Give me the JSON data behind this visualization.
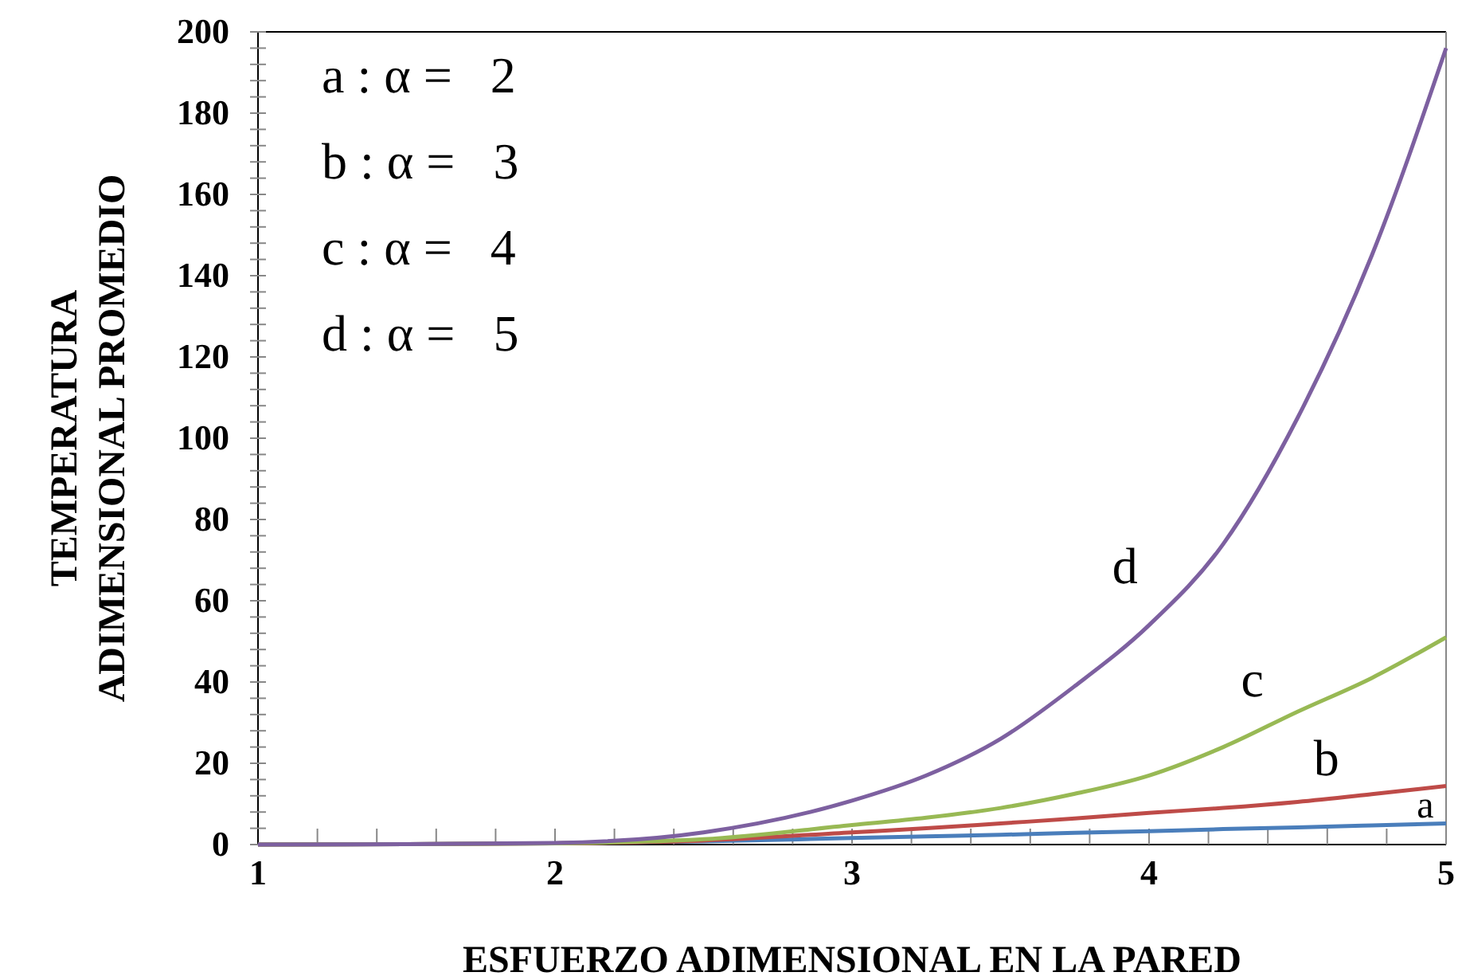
{
  "chart_data": {
    "type": "line",
    "xlabel": "ESFUERZO ADIMENSIONAL EN LA PARED",
    "ylabel": "TEMPERATURA\nADIMENSIONAL PROMEDIO",
    "x": [
      1,
      1.5,
      2,
      2.5,
      3,
      3.25,
      3.5,
      3.75,
      4,
      4.25,
      4.5,
      4.75,
      5
    ],
    "series": [
      {
        "name": "a",
        "color": "#4a7ebb",
        "values": [
          0,
          0.1,
          0.3,
          0.8,
          1.6,
          2,
          2.4,
          2.9,
          3.3,
          3.8,
          4.2,
          4.7,
          5.2
        ]
      },
      {
        "name": "b",
        "color": "#be4b48",
        "values": [
          0,
          0.1,
          0.3,
          1,
          3,
          4,
          5.2,
          6.4,
          7.8,
          9,
          10.5,
          12.4,
          14.4
        ]
      },
      {
        "name": "c",
        "color": "#98b954",
        "values": [
          0,
          0.1,
          0.3,
          1.3,
          4.8,
          6.6,
          9,
          12.5,
          17,
          24,
          32.7,
          41,
          51
        ]
      },
      {
        "name": "d",
        "color": "#7d60a0",
        "values": [
          0,
          0.1,
          0.4,
          3,
          10.8,
          17,
          26,
          39,
          54,
          74,
          105,
          145,
          196
        ]
      }
    ],
    "xlim": [
      1,
      5
    ],
    "ylim": [
      0,
      200
    ],
    "xticks": [
      1,
      {
        "value": 1.2,
        "label": null
      },
      {
        "value": 1.4,
        "label": null
      },
      {
        "value": 1.6,
        "label": null
      },
      {
        "value": 1.8,
        "label": null
      },
      2,
      {
        "value": 2.2,
        "label": null
      },
      {
        "value": 2.4,
        "label": null
      },
      {
        "value": 2.6,
        "label": null
      },
      {
        "value": 2.8,
        "label": null
      },
      3,
      {
        "value": 3.2,
        "label": null
      },
      {
        "value": 3.4,
        "label": null
      },
      {
        "value": 3.6,
        "label": null
      },
      {
        "value": 3.8,
        "label": null
      },
      4,
      {
        "value": 4.2,
        "label": null
      },
      {
        "value": 4.4,
        "label": null
      },
      {
        "value": 4.6,
        "label": null
      },
      {
        "value": 4.8,
        "label": null
      },
      5
    ],
    "yticks": [
      0,
      {
        "value": 4,
        "label": null
      },
      {
        "value": 8,
        "label": null
      },
      {
        "value": 12,
        "label": null
      },
      {
        "value": 16,
        "label": null
      },
      20,
      {
        "value": 24,
        "label": null
      },
      {
        "value": 28,
        "label": null
      },
      {
        "value": 32,
        "label": null
      },
      {
        "value": 36,
        "label": null
      },
      40,
      {
        "value": 44,
        "label": null
      },
      {
        "value": 48,
        "label": null
      },
      {
        "value": 52,
        "label": null
      },
      {
        "value": 56,
        "label": null
      },
      60,
      {
        "value": 64,
        "label": null
      },
      {
        "value": 68,
        "label": null
      },
      {
        "value": 72,
        "label": null
      },
      {
        "value": 76,
        "label": null
      },
      80,
      {
        "value": 84,
        "label": null
      },
      {
        "value": 88,
        "label": null
      },
      {
        "value": 92,
        "label": null
      },
      {
        "value": 96,
        "label": null
      },
      100,
      {
        "value": 104,
        "label": null
      },
      {
        "value": 108,
        "label": null
      },
      {
        "value": 112,
        "label": null
      },
      {
        "value": 116,
        "label": null
      },
      120,
      {
        "value": 124,
        "label": null
      },
      {
        "value": 128,
        "label": null
      },
      {
        "value": 132,
        "label": null
      },
      {
        "value": 136,
        "label": null
      },
      140,
      {
        "value": 144,
        "label": null
      },
      {
        "value": 148,
        "label": null
      },
      {
        "value": 152,
        "label": null
      },
      {
        "value": 156,
        "label": null
      },
      160,
      {
        "value": 164,
        "label": null
      },
      {
        "value": 168,
        "label": null
      },
      {
        "value": 172,
        "label": null
      },
      {
        "value": 176,
        "label": null
      },
      180,
      {
        "value": 184,
        "label": null
      },
      {
        "value": 188,
        "label": null
      },
      {
        "value": 192,
        "label": null
      },
      {
        "value": 196,
        "label": null
      },
      200
    ],
    "annotations": [
      "a : α =   2",
      "b : α =   3",
      "c : α =   4",
      "d : α =   5"
    ],
    "grid": false,
    "marker": "none",
    "line_style": "solid"
  }
}
